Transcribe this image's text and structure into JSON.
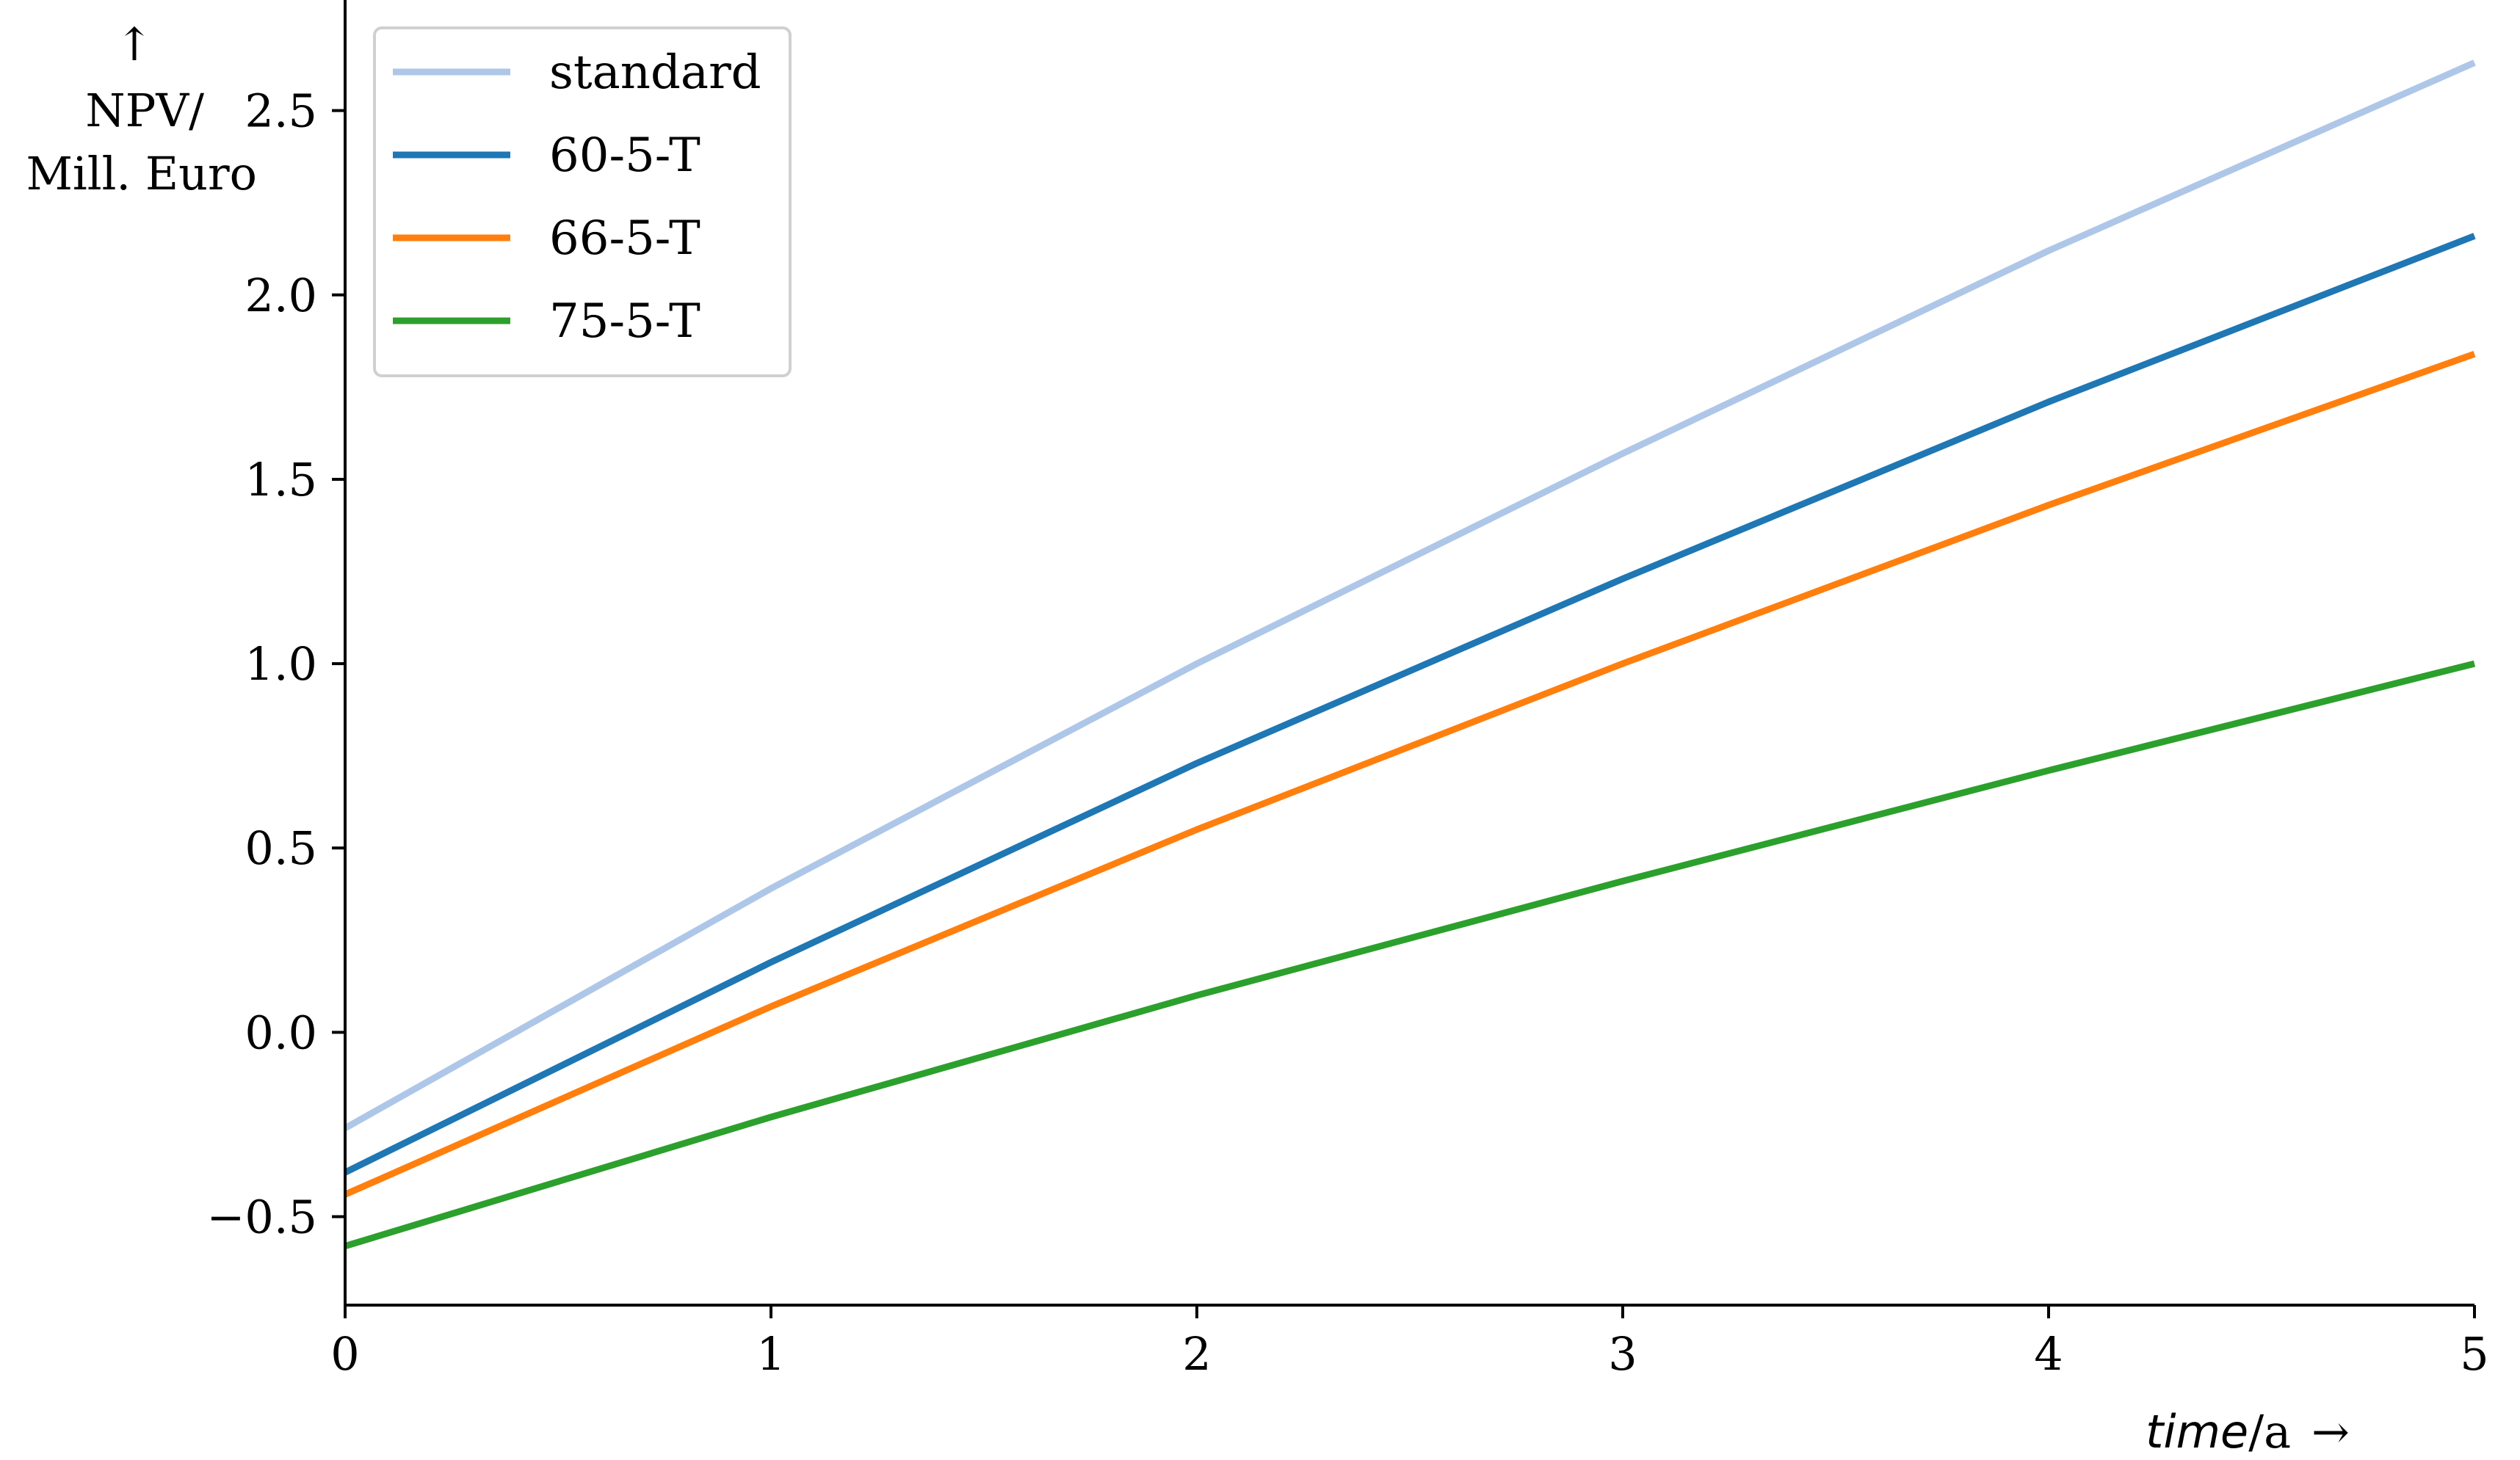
{
  "chart_data": {
    "type": "line",
    "title": "",
    "xlabel_italic": "time",
    "xlabel_unit": "/a",
    "xlabel_arrow": "→",
    "ylabel_arrow": "↑",
    "ylabel_line1": "NPV/",
    "ylabel_line2": "Mill. Euro",
    "xlim": [
      0,
      5
    ],
    "ylim": [
      -0.74,
      2.8
    ],
    "x_ticks": [
      0,
      1,
      2,
      3,
      4,
      5
    ],
    "x_tick_labels": [
      "0",
      "1",
      "2",
      "3",
      "4",
      "5"
    ],
    "y_ticks": [
      -0.5,
      0.0,
      0.5,
      1.0,
      1.5,
      2.0,
      2.5
    ],
    "y_tick_labels": [
      "−0.5",
      "0.0",
      "0.5",
      "1.0",
      "1.5",
      "2.0",
      "2.5"
    ],
    "grid": false,
    "legend_position": "top-left",
    "x": [
      0,
      1,
      2,
      3,
      4,
      5
    ],
    "series": [
      {
        "name": "standard",
        "color": "#aec7e8",
        "values": [
          -0.26,
          0.39,
          1.0,
          1.57,
          2.12,
          2.63
        ]
      },
      {
        "name": "60-5-T",
        "color": "#1f77b4",
        "values": [
          -0.38,
          0.19,
          0.73,
          1.23,
          1.71,
          2.16
        ]
      },
      {
        "name": "66-5-T",
        "color": "#ff7f0e",
        "values": [
          -0.44,
          0.07,
          0.55,
          1.0,
          1.43,
          1.84
        ]
      },
      {
        "name": "75-5-T",
        "color": "#2ca02c",
        "values": [
          -0.58,
          -0.23,
          0.1,
          0.41,
          0.71,
          1.0
        ]
      }
    ]
  }
}
